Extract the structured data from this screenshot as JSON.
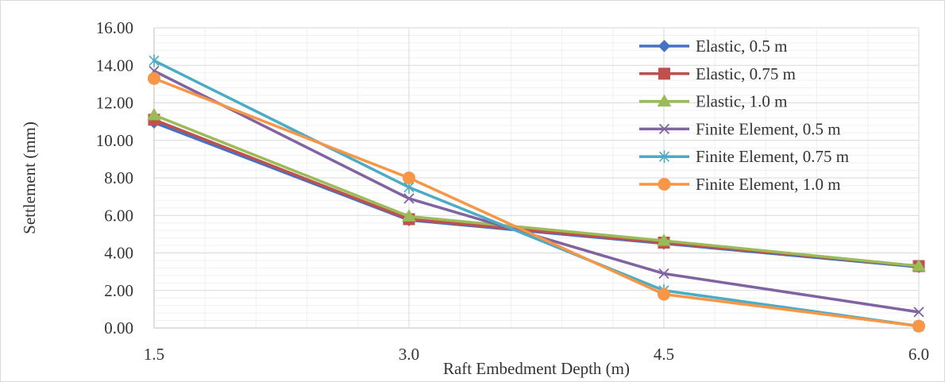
{
  "chart_data": {
    "type": "line",
    "title": "",
    "xlabel": "Raft Embedment Depth (m)",
    "ylabel": "Settlement (mm)",
    "categories": [
      "1.5",
      "3.0",
      "4.5",
      "6.0"
    ],
    "ylim": [
      0,
      16
    ],
    "yticks": [
      "0.00",
      "2.00",
      "4.00",
      "6.00",
      "8.00",
      "10.00",
      "12.00",
      "14.00",
      "16.00"
    ],
    "grid": true,
    "legend_position": "top-right",
    "series": [
      {
        "name": "Elastic, 0.5 m",
        "color": "#4472C4",
        "marker": "diamond",
        "values": [
          10.95,
          5.75,
          4.5,
          3.25
        ]
      },
      {
        "name": "Elastic, 0.75 m",
        "color": "#C0504D",
        "marker": "square",
        "values": [
          11.1,
          5.8,
          4.55,
          3.3
        ]
      },
      {
        "name": "Elastic, 1.0 m",
        "color": "#9BBB59",
        "marker": "triangle",
        "values": [
          11.35,
          5.95,
          4.65,
          3.3
        ]
      },
      {
        "name": "Finite Element, 0.5 m",
        "color": "#8064A2",
        "marker": "x",
        "values": [
          13.7,
          6.9,
          2.9,
          0.85
        ]
      },
      {
        "name": "Finite Element, 0.75 m",
        "color": "#4BACC6",
        "marker": "star",
        "values": [
          14.25,
          7.5,
          2.0,
          0.1
        ]
      },
      {
        "name": "Finite Element, 1.0 m",
        "color": "#F79646",
        "marker": "circle",
        "values": [
          13.3,
          8.0,
          1.8,
          0.1
        ]
      }
    ]
  }
}
